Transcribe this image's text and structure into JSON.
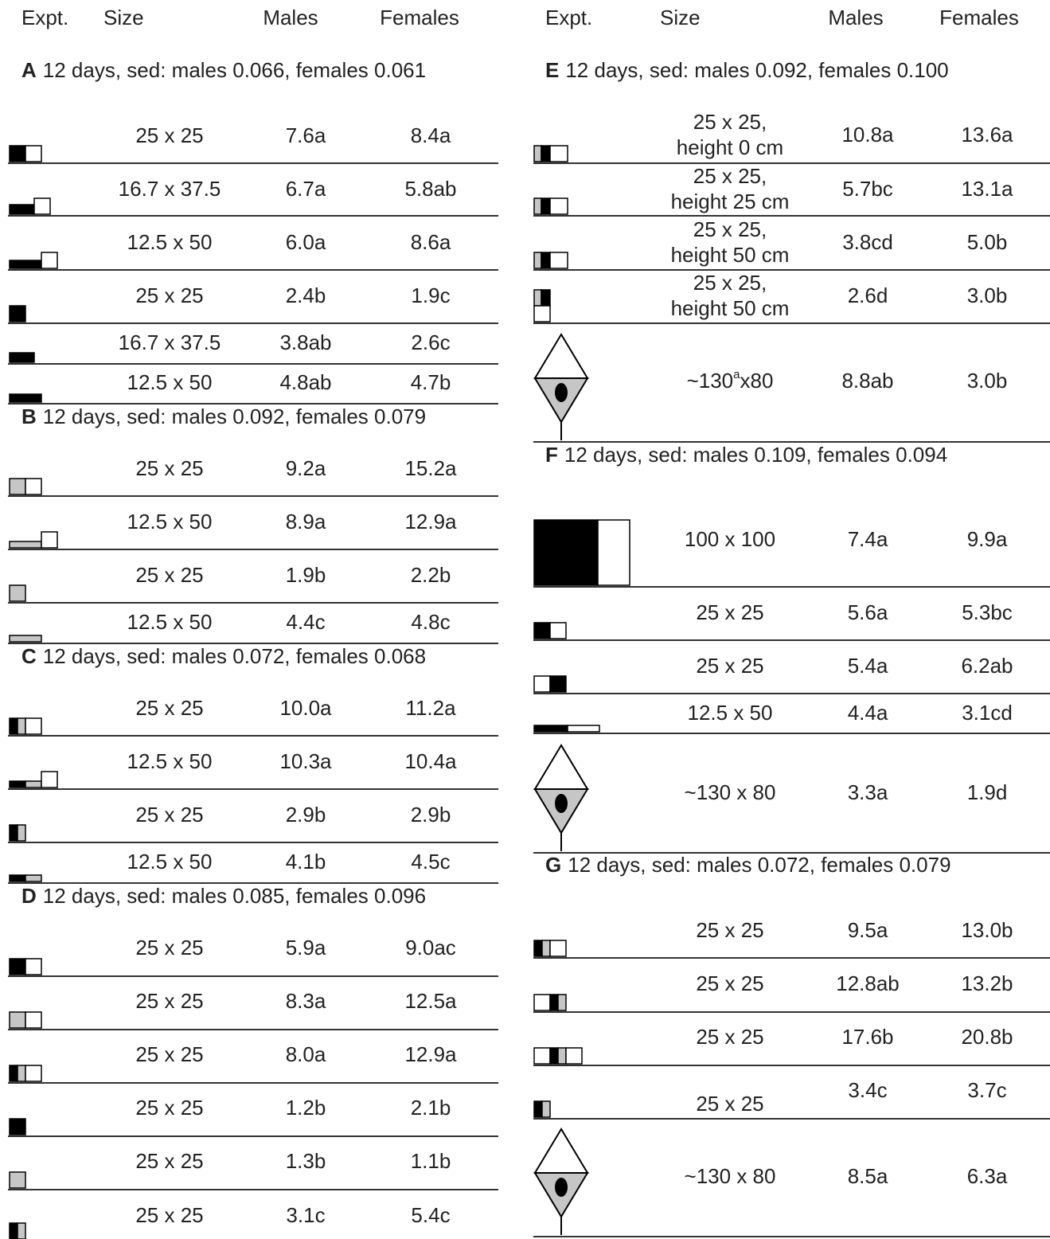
{
  "header": {
    "left": [
      "Expt.",
      "Size",
      "Males",
      "Females"
    ],
    "right": [
      "Expt.",
      "Size",
      "Males",
      "Females"
    ]
  },
  "sections": [
    {
      "label": "A",
      "text": "12 days, sed: males 0.066, females 0.061",
      "rows": [
        [
          "25 x 25",
          "7.6a",
          "8.4a"
        ],
        [
          "16.7 x 37.5",
          "6.7a",
          "5.8ab"
        ],
        [
          "12.5 x 50",
          "6.0a",
          "8.6a"
        ],
        [
          "25 x 25",
          "2.4b",
          "1.9c"
        ],
        [
          "16.7 x 37.5",
          "3.8ab",
          "2.6c"
        ],
        [
          "12.5 x 50",
          "4.8ab",
          "4.7b"
        ]
      ]
    },
    {
      "label": "B",
      "text": "12 days, sed: males 0.092, females 0.079",
      "rows": [
        [
          "25 x 25",
          "9.2a",
          "15.2a"
        ],
        [
          "12.5 x 50",
          "8.9a",
          "12.9a"
        ],
        [
          "25 x 25",
          "1.9b",
          "2.2b"
        ],
        [
          "12.5 x 50",
          "4.4c",
          "4.8c"
        ]
      ]
    },
    {
      "label": "C",
      "text": "12 days, sed: males 0.072, females 0.068",
      "rows": [
        [
          "25 x 25",
          "10.0a",
          "11.2a"
        ],
        [
          "12.5 x 50",
          "10.3a",
          "10.4a"
        ],
        [
          "25 x 25",
          "2.9b",
          "2.9b"
        ],
        [
          "12.5 x 50",
          "4.1b",
          "4.5c"
        ]
      ]
    },
    {
      "label": "D",
      "text": "12 days, sed: males 0.085, females 0.096",
      "rows": [
        [
          "25 x 25",
          "5.9a",
          "9.0ac"
        ],
        [
          "25 x 25",
          "8.3a",
          "12.5a"
        ],
        [
          "25 x 25",
          "8.0a",
          "12.9a"
        ],
        [
          "25 x 25",
          "1.2b",
          "2.1b"
        ],
        [
          "25 x 25",
          "1.3b",
          "1.1b"
        ],
        [
          "25 x 25",
          "3.1c",
          "5.4c"
        ]
      ]
    },
    {
      "label": "E",
      "text": "12 days, sed: males 0.092, females 0.100",
      "rows": [
        [
          [
            "25 x 25,",
            "height 0 cm"
          ],
          "10.8a",
          "13.6a"
        ],
        [
          [
            "25 x 25,",
            "height 25 cm"
          ],
          "5.7bc",
          "13.1a"
        ],
        [
          [
            "25 x 25,",
            "height 50 cm"
          ],
          "3.8cd",
          "5.0b"
        ],
        [
          [
            "25 x 25,",
            "height 50 cm"
          ],
          "2.6d",
          "3.0b"
        ],
        [
          {
            "before": "~130",
            "sup": "a",
            "after": "x80"
          },
          "8.8ab",
          "3.0b"
        ]
      ]
    },
    {
      "label": "F",
      "text": "12 days, sed: males 0.109, females 0.094",
      "rows": [
        [
          "100 x 100",
          "7.4a",
          "9.9a"
        ],
        [
          "25 x 25",
          "5.6a",
          "5.3bc"
        ],
        [
          "25 x 25",
          "5.4a",
          "6.2ab"
        ],
        [
          "12.5 x 50",
          "4.4a",
          "3.1cd"
        ],
        [
          "~130 x 80",
          "3.3a",
          "1.9d"
        ]
      ]
    },
    {
      "label": "G",
      "text": "12 days, sed: males 0.072, females 0.079",
      "rows": [
        [
          "25 x 25",
          "9.5a",
          "13.0b"
        ],
        [
          "25 x 25",
          "12.8ab",
          "13.2b"
        ],
        [
          "25 x 25",
          "17.6b",
          "20.8b"
        ],
        [
          "25 x 25",
          "3.4c",
          "3.7c"
        ],
        [
          "~130 x 80",
          "8.5a",
          "6.3a"
        ]
      ]
    }
  ]
}
